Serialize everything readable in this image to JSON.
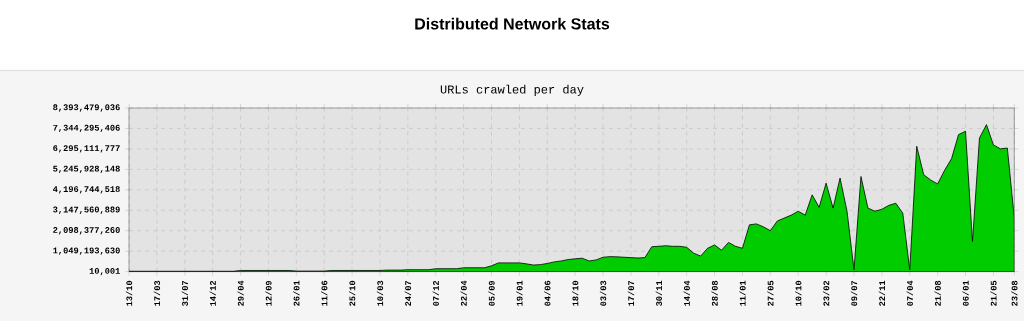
{
  "chart_data": {
    "type": "area",
    "title": "Distributed Network Stats",
    "subtitle": "URLs crawled per day",
    "categories": [
      "13/10",
      null,
      null,
      null,
      "17/03",
      null,
      null,
      null,
      "31/07",
      null,
      null,
      null,
      "14/12",
      null,
      null,
      null,
      "29/04",
      null,
      null,
      null,
      "12/09",
      null,
      null,
      null,
      "26/01",
      null,
      null,
      null,
      "11/06",
      null,
      null,
      null,
      "25/10",
      null,
      null,
      null,
      "10/03",
      null,
      null,
      null,
      "24/07",
      null,
      null,
      null,
      "07/12",
      null,
      null,
      null,
      "22/04",
      null,
      null,
      null,
      "05/09",
      null,
      null,
      null,
      "19/01",
      null,
      null,
      null,
      "04/06",
      null,
      null,
      null,
      "18/10",
      null,
      null,
      null,
      "03/03",
      null,
      null,
      null,
      "17/07",
      null,
      null,
      null,
      "30/11",
      null,
      null,
      null,
      "14/04",
      null,
      null,
      null,
      "28/08",
      null,
      null,
      null,
      "11/01",
      null,
      null,
      null,
      "27/05",
      null,
      null,
      null,
      "10/10",
      null,
      null,
      null,
      "23/02",
      null,
      null,
      null,
      "09/07",
      null,
      null,
      null,
      "22/11",
      null,
      null,
      null,
      "07/04",
      null,
      null,
      null,
      "21/08",
      null,
      null,
      null,
      "06/01",
      null,
      null,
      null,
      "21/05",
      null,
      null,
      "23/08"
    ],
    "series": [
      {
        "color": "#00cc00",
        "values": [
          20000000,
          20000000,
          20000000,
          20000000,
          20000000,
          20000000,
          20000000,
          20000000,
          20000000,
          20000000,
          20000000,
          20000000,
          20000000,
          20000000,
          20000000,
          20000000,
          60000000,
          60000000,
          60000000,
          60000000,
          60000000,
          60000000,
          60000000,
          60000000,
          30000000,
          30000000,
          30000000,
          30000000,
          30000000,
          60000000,
          60000000,
          60000000,
          60000000,
          60000000,
          60000000,
          60000000,
          60000000,
          80000000,
          80000000,
          80000000,
          100000000,
          100000000,
          100000000,
          100000000,
          150000000,
          150000000,
          150000000,
          150000000,
          200000000,
          200000000,
          200000000,
          200000000,
          300000000,
          450000000,
          450000000,
          450000000,
          450000000,
          400000000,
          340000000,
          360000000,
          420000000,
          500000000,
          550000000,
          620000000,
          660000000,
          690000000,
          550000000,
          600000000,
          740000000,
          770000000,
          760000000,
          740000000,
          720000000,
          700000000,
          720000000,
          1280000000,
          1300000000,
          1330000000,
          1300000000,
          1300000000,
          1250000000,
          950000000,
          800000000,
          1200000000,
          1370000000,
          1100000000,
          1500000000,
          1300000000,
          1200000000,
          2400000000,
          2450000000,
          2300000000,
          2100000000,
          2600000000,
          2750000000,
          2900000000,
          3100000000,
          2900000000,
          3940000000,
          3300000000,
          4540000000,
          3260000000,
          4800000000,
          3100000000,
          90000000,
          4880000000,
          3260000000,
          3100000000,
          3200000000,
          3400000000,
          3510000000,
          3000000000,
          90000000,
          6430000000,
          4970000000,
          4700000000,
          4500000000,
          5200000000,
          5800000000,
          7030000000,
          7200000000,
          1540000000,
          6850000000,
          7540000000,
          6500000000,
          6300000000,
          6340000000,
          2740000000
        ]
      }
    ],
    "ylim": [
      10001,
      8393479036
    ],
    "yticks": [
      {
        "value": 10001,
        "label": "10,001"
      },
      {
        "value": 1049193630,
        "label": "1,049,193,630"
      },
      {
        "value": 2098377260,
        "label": "2,098,377,260"
      },
      {
        "value": 3147560889,
        "label": "3,147,560,889"
      },
      {
        "value": 4196744518,
        "label": "4,196,744,518"
      },
      {
        "value": 5245928148,
        "label": "5,245,928,148"
      },
      {
        "value": 6295111777,
        "label": "6,295,111,777"
      },
      {
        "value": 7344295406,
        "label": "7,344,295,406"
      },
      {
        "value": 8393479036,
        "label": "8,393,479,036"
      }
    ],
    "grid": true
  }
}
